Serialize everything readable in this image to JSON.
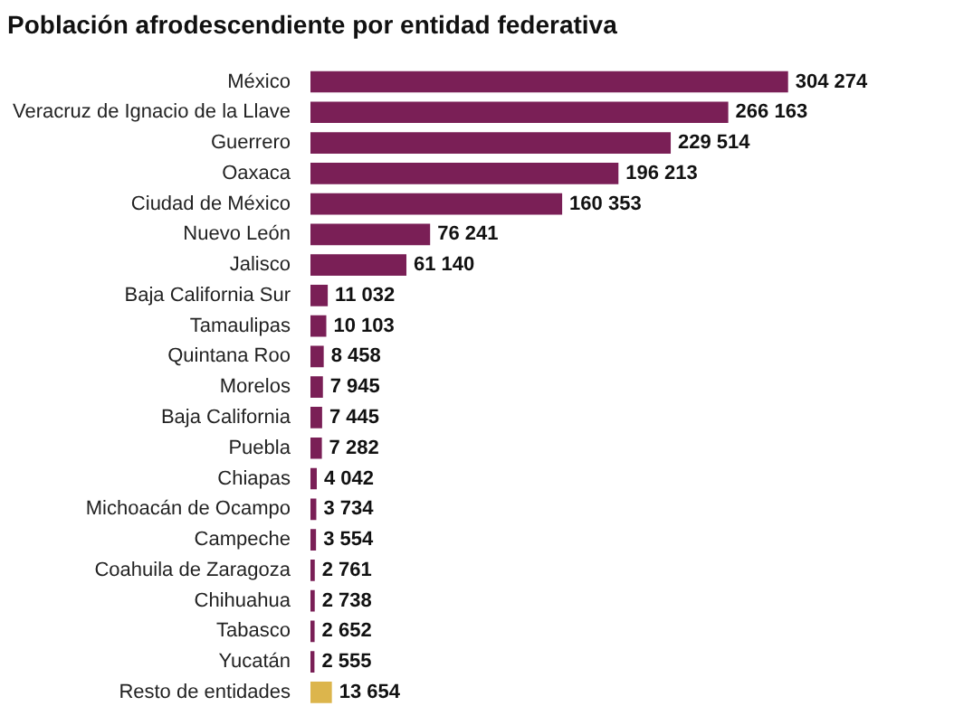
{
  "chart_data": {
    "type": "bar",
    "orientation": "horizontal",
    "title": "Población afrodescendiente por entidad federativa",
    "categories": [
      "México",
      "Veracruz de Ignacio de la Llave",
      "Guerrero",
      "Oaxaca",
      "Ciudad de México",
      "Nuevo León",
      "Jalisco",
      "Baja California Sur",
      "Tamaulipas",
      "Quintana Roo",
      "Morelos",
      "Baja California",
      "Puebla",
      "Chiapas",
      "Michoacán de Ocampo",
      "Campeche",
      "Coahuila de Zaragoza",
      "Chihuahua",
      "Tabasco",
      "Yucatán",
      "Resto de entidades"
    ],
    "values": [
      304274,
      266163,
      229514,
      196213,
      160353,
      76241,
      61140,
      11032,
      10103,
      8458,
      7945,
      7445,
      7282,
      4042,
      3734,
      3554,
      2761,
      2738,
      2652,
      2555,
      13654
    ],
    "value_labels": [
      "304 274",
      "266 163",
      "229 514",
      "196 213",
      "160 353",
      "76 241",
      "61 140",
      "11 032",
      "10 103",
      "8 458",
      "7 945",
      "7 445",
      "7 282",
      "4 042",
      "3 734",
      "3 554",
      "2 761",
      "2 738",
      "2 652",
      "2 555",
      "13 654"
    ],
    "colors": [
      "#7a1f56",
      "#7a1f56",
      "#7a1f56",
      "#7a1f56",
      "#7a1f56",
      "#7a1f56",
      "#7a1f56",
      "#7a1f56",
      "#7a1f56",
      "#7a1f56",
      "#7a1f56",
      "#7a1f56",
      "#7a1f56",
      "#7a1f56",
      "#7a1f56",
      "#7a1f56",
      "#7a1f56",
      "#7a1f56",
      "#7a1f56",
      "#7a1f56",
      "#dcb54c"
    ]
  }
}
